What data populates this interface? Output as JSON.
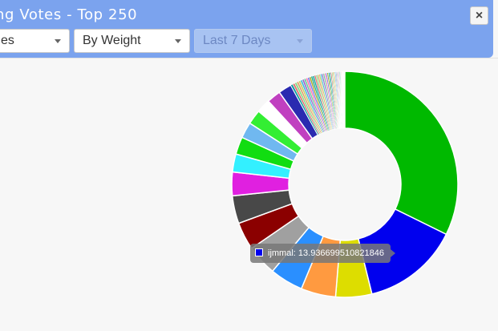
{
  "window": {
    "title": "ng Votes - Top 250",
    "close_label": "×"
  },
  "filters": {
    "first": {
      "value": "es"
    },
    "weight": {
      "value": "By Weight"
    },
    "period": {
      "value": "Last 7 Days",
      "disabled": true
    }
  },
  "chart_data": {
    "type": "pie",
    "donut": true,
    "values": [
      32.5,
      13.94,
      5.2,
      5.0,
      4.8,
      4.4,
      4.0,
      4.0,
      3.4,
      2.6,
      2.5,
      2.3,
      2.1,
      2.0,
      2.0,
      1.9
    ],
    "colors": [
      "#00b900",
      "#0000ee",
      "#dddd00",
      "#ff9a40",
      "#2a8fff",
      "#a0a0a0",
      "#8b0000",
      "#484848",
      "#e020e0",
      "#33f0ff",
      "#11dd11",
      "#70b8f0",
      "#33ee33",
      "#ffffff",
      "#c040c0",
      "#2a2ab0"
    ],
    "small_slices": {
      "count": 50,
      "total": 8.0
    },
    "small_palette": [
      "#11a0a0",
      "#e07070",
      "#88dd88",
      "#e0a070",
      "#cccc66",
      "#44bbdd",
      "#9966cc",
      "#66cc99",
      "#ff77aa",
      "#7777ee",
      "#aaaa22",
      "#22aa88"
    ],
    "tooltip": {
      "label": "ijmmal",
      "value": "13.936699510821846"
    }
  }
}
